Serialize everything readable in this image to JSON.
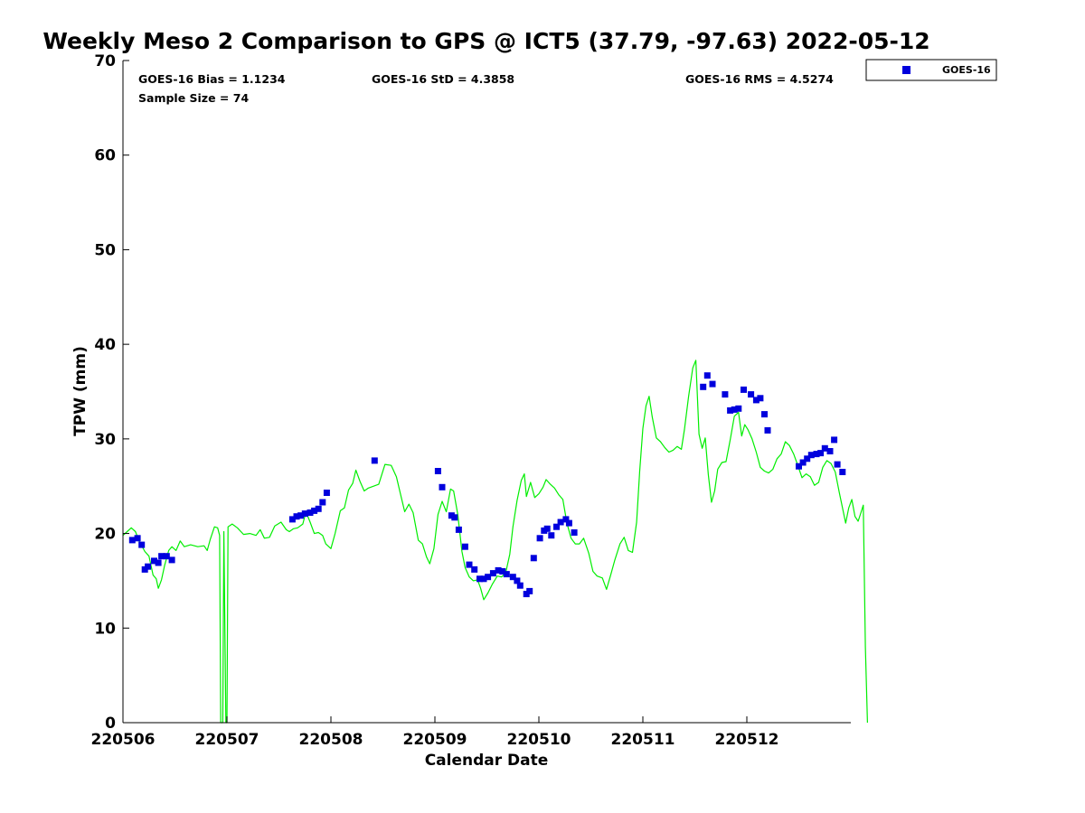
{
  "colors": {
    "gps_line": "#00ee00",
    "goes_marker": "#0000dd",
    "axis": "#000000",
    "background": "#ffffff"
  },
  "stats": {
    "bias": "GOES-16 Bias = 1.1234",
    "std": "GOES-16 StD = 4.3858",
    "rms": "GOES-16 RMS = 4.5274",
    "sample_size": "Sample Size = 74"
  },
  "chart_data": {
    "type": "scatter",
    "title": "Weekly Meso 2 Comparison to GPS @ ICT5 (37.79, -97.63) 2022-05-12",
    "xlabel": "Calendar Date",
    "ylabel": "TPW (mm)",
    "xlim": [
      0,
      7
    ],
    "ylim": [
      0,
      70
    ],
    "grid": false,
    "legend_position": "top-right outside",
    "x_ticks": [
      {
        "value": 0,
        "label": "220506"
      },
      {
        "value": 1,
        "label": "220507"
      },
      {
        "value": 2,
        "label": "220508"
      },
      {
        "value": 3,
        "label": "220509"
      },
      {
        "value": 4,
        "label": "220510"
      },
      {
        "value": 5,
        "label": "220511"
      },
      {
        "value": 6,
        "label": "220512"
      }
    ],
    "y_ticks": [
      {
        "value": 0,
        "label": "0"
      },
      {
        "value": 10,
        "label": "10"
      },
      {
        "value": 20,
        "label": "20"
      },
      {
        "value": 30,
        "label": "30"
      },
      {
        "value": 40,
        "label": "40"
      },
      {
        "value": 50,
        "label": "50"
      },
      {
        "value": 60,
        "label": "60"
      },
      {
        "value": 70,
        "label": "70"
      }
    ],
    "series": [
      {
        "name": "GOES-16",
        "type": "scatter",
        "marker": "square",
        "points": [
          [
            0.09,
            19.3
          ],
          [
            0.14,
            19.5
          ],
          [
            0.18,
            18.8
          ],
          [
            0.21,
            16.2
          ],
          [
            0.24,
            16.5
          ],
          [
            0.3,
            17.1
          ],
          [
            0.34,
            16.9
          ],
          [
            0.37,
            17.6
          ],
          [
            0.42,
            17.6
          ],
          [
            0.47,
            17.2
          ],
          [
            1.63,
            21.5
          ],
          [
            1.67,
            21.8
          ],
          [
            1.71,
            21.9
          ],
          [
            1.75,
            22.1
          ],
          [
            1.8,
            22.2
          ],
          [
            1.84,
            22.4
          ],
          [
            1.88,
            22.6
          ],
          [
            1.92,
            23.3
          ],
          [
            1.96,
            24.3
          ],
          [
            2.42,
            27.7
          ],
          [
            3.03,
            26.6
          ],
          [
            3.07,
            24.9
          ],
          [
            3.16,
            21.9
          ],
          [
            3.19,
            21.7
          ],
          [
            3.23,
            20.4
          ],
          [
            3.29,
            18.6
          ],
          [
            3.33,
            16.7
          ],
          [
            3.38,
            16.2
          ],
          [
            3.43,
            15.2
          ],
          [
            3.47,
            15.2
          ],
          [
            3.51,
            15.4
          ],
          [
            3.56,
            15.8
          ],
          [
            3.61,
            16.1
          ],
          [
            3.65,
            16.0
          ],
          [
            3.69,
            15.7
          ],
          [
            3.75,
            15.4
          ],
          [
            3.79,
            15.0
          ],
          [
            3.82,
            14.5
          ],
          [
            3.88,
            13.6
          ],
          [
            3.91,
            13.9
          ],
          [
            3.95,
            17.4
          ],
          [
            4.01,
            19.5
          ],
          [
            4.05,
            20.3
          ],
          [
            4.08,
            20.5
          ],
          [
            4.12,
            19.8
          ],
          [
            4.17,
            20.7
          ],
          [
            4.21,
            21.2
          ],
          [
            4.26,
            21.5
          ],
          [
            4.29,
            21.1
          ],
          [
            4.34,
            20.1
          ],
          [
            5.58,
            35.5
          ],
          [
            5.62,
            36.7
          ],
          [
            5.67,
            35.8
          ],
          [
            5.79,
            34.7
          ],
          [
            5.84,
            33.0
          ],
          [
            5.88,
            33.1
          ],
          [
            5.92,
            33.2
          ],
          [
            5.97,
            35.2
          ],
          [
            6.04,
            34.7
          ],
          [
            6.09,
            34.1
          ],
          [
            6.13,
            34.3
          ],
          [
            6.17,
            32.6
          ],
          [
            6.2,
            30.9
          ],
          [
            6.5,
            27.1
          ],
          [
            6.54,
            27.5
          ],
          [
            6.58,
            27.9
          ],
          [
            6.62,
            28.3
          ],
          [
            6.67,
            28.4
          ],
          [
            6.71,
            28.5
          ],
          [
            6.75,
            29.0
          ],
          [
            6.8,
            28.7
          ],
          [
            6.84,
            29.9
          ],
          [
            6.87,
            27.3
          ],
          [
            6.92,
            26.5
          ]
        ]
      },
      {
        "name": "GPS",
        "type": "line",
        "points": [
          [
            0.0,
            19.8
          ],
          [
            0.04,
            20.2
          ],
          [
            0.08,
            20.6
          ],
          [
            0.12,
            20.2
          ],
          [
            0.16,
            19.1
          ],
          [
            0.21,
            18.1
          ],
          [
            0.25,
            17.6
          ],
          [
            0.29,
            15.6
          ],
          [
            0.32,
            15.2
          ],
          [
            0.34,
            14.2
          ],
          [
            0.37,
            15.1
          ],
          [
            0.4,
            16.6
          ],
          [
            0.44,
            18.2
          ],
          [
            0.47,
            18.6
          ],
          [
            0.51,
            18.2
          ],
          [
            0.55,
            19.2
          ],
          [
            0.59,
            18.6
          ],
          [
            0.65,
            18.8
          ],
          [
            0.72,
            18.6
          ],
          [
            0.78,
            18.7
          ],
          [
            0.81,
            18.2
          ],
          [
            0.84,
            19.4
          ],
          [
            0.88,
            20.7
          ],
          [
            0.91,
            20.6
          ],
          [
            0.93,
            19.8
          ],
          [
            0.94,
            0
          ],
          [
            0.96,
            0
          ],
          [
            0.97,
            20.2
          ],
          [
            0.99,
            0
          ],
          [
            1.0,
            0
          ],
          [
            1.01,
            20.7
          ],
          [
            1.05,
            21.0
          ],
          [
            1.1,
            20.6
          ],
          [
            1.16,
            19.9
          ],
          [
            1.22,
            20.0
          ],
          [
            1.28,
            19.8
          ],
          [
            1.32,
            20.4
          ],
          [
            1.36,
            19.5
          ],
          [
            1.41,
            19.6
          ],
          [
            1.46,
            20.8
          ],
          [
            1.52,
            21.2
          ],
          [
            1.57,
            20.4
          ],
          [
            1.6,
            20.2
          ],
          [
            1.64,
            20.5
          ],
          [
            1.68,
            20.6
          ],
          [
            1.73,
            21.0
          ],
          [
            1.76,
            22.3
          ],
          [
            1.8,
            21.2
          ],
          [
            1.84,
            20.0
          ],
          [
            1.88,
            20.1
          ],
          [
            1.92,
            19.8
          ],
          [
            1.95,
            18.9
          ],
          [
            2.0,
            18.4
          ],
          [
            2.04,
            20.0
          ],
          [
            2.09,
            22.4
          ],
          [
            2.13,
            22.7
          ],
          [
            2.17,
            24.6
          ],
          [
            2.21,
            25.3
          ],
          [
            2.24,
            26.7
          ],
          [
            2.28,
            25.5
          ],
          [
            2.32,
            24.5
          ],
          [
            2.36,
            24.8
          ],
          [
            2.41,
            25.0
          ],
          [
            2.46,
            25.2
          ],
          [
            2.52,
            27.3
          ],
          [
            2.58,
            27.2
          ],
          [
            2.63,
            26.0
          ],
          [
            2.67,
            24.1
          ],
          [
            2.71,
            22.3
          ],
          [
            2.75,
            23.1
          ],
          [
            2.79,
            22.2
          ],
          [
            2.84,
            19.3
          ],
          [
            2.88,
            18.9
          ],
          [
            2.92,
            17.5
          ],
          [
            2.95,
            16.8
          ],
          [
            2.99,
            18.4
          ],
          [
            3.03,
            22.0
          ],
          [
            3.07,
            23.4
          ],
          [
            3.11,
            22.3
          ],
          [
            3.15,
            24.7
          ],
          [
            3.18,
            24.5
          ],
          [
            3.22,
            22.0
          ],
          [
            3.26,
            18.1
          ],
          [
            3.29,
            16.4
          ],
          [
            3.33,
            15.4
          ],
          [
            3.37,
            15.0
          ],
          [
            3.41,
            15.1
          ],
          [
            3.44,
            14.2
          ],
          [
            3.47,
            13.0
          ],
          [
            3.51,
            13.7
          ],
          [
            3.55,
            14.6
          ],
          [
            3.6,
            15.5
          ],
          [
            3.64,
            15.4
          ],
          [
            3.68,
            15.8
          ],
          [
            3.72,
            17.8
          ],
          [
            3.75,
            20.7
          ],
          [
            3.79,
            23.5
          ],
          [
            3.83,
            25.6
          ],
          [
            3.86,
            26.3
          ],
          [
            3.88,
            23.9
          ],
          [
            3.92,
            25.4
          ],
          [
            3.96,
            23.8
          ],
          [
            4.0,
            24.2
          ],
          [
            4.04,
            24.9
          ],
          [
            4.07,
            25.7
          ],
          [
            4.11,
            25.2
          ],
          [
            4.15,
            24.8
          ],
          [
            4.19,
            24.1
          ],
          [
            4.23,
            23.6
          ],
          [
            4.27,
            21.1
          ],
          [
            4.31,
            19.5
          ],
          [
            4.35,
            18.9
          ],
          [
            4.39,
            18.9
          ],
          [
            4.43,
            19.5
          ],
          [
            4.48,
            17.9
          ],
          [
            4.52,
            16.0
          ],
          [
            4.56,
            15.5
          ],
          [
            4.61,
            15.3
          ],
          [
            4.65,
            14.1
          ],
          [
            4.69,
            15.6
          ],
          [
            4.73,
            17.2
          ],
          [
            4.78,
            18.9
          ],
          [
            4.82,
            19.6
          ],
          [
            4.86,
            18.2
          ],
          [
            4.9,
            18.0
          ],
          [
            4.94,
            21.2
          ],
          [
            4.97,
            26.6
          ],
          [
            5.0,
            31.1
          ],
          [
            5.03,
            33.5
          ],
          [
            5.06,
            34.5
          ],
          [
            5.09,
            32.3
          ],
          [
            5.13,
            30.1
          ],
          [
            5.17,
            29.7
          ],
          [
            5.21,
            29.1
          ],
          [
            5.25,
            28.6
          ],
          [
            5.29,
            28.8
          ],
          [
            5.33,
            29.2
          ],
          [
            5.37,
            28.9
          ],
          [
            5.4,
            31.0
          ],
          [
            5.44,
            34.5
          ],
          [
            5.48,
            37.5
          ],
          [
            5.51,
            38.3
          ],
          [
            5.54,
            30.5
          ],
          [
            5.57,
            29.0
          ],
          [
            5.6,
            30.1
          ],
          [
            5.63,
            26.2
          ],
          [
            5.66,
            23.3
          ],
          [
            5.69,
            24.5
          ],
          [
            5.72,
            26.8
          ],
          [
            5.76,
            27.5
          ],
          [
            5.8,
            27.6
          ],
          [
            5.84,
            29.9
          ],
          [
            5.88,
            32.4
          ],
          [
            5.92,
            32.8
          ],
          [
            5.95,
            30.3
          ],
          [
            5.98,
            31.5
          ],
          [
            6.01,
            31.0
          ],
          [
            6.05,
            30.0
          ],
          [
            6.09,
            28.6
          ],
          [
            6.13,
            27.0
          ],
          [
            6.17,
            26.6
          ],
          [
            6.21,
            26.4
          ],
          [
            6.25,
            26.8
          ],
          [
            6.29,
            27.9
          ],
          [
            6.33,
            28.4
          ],
          [
            6.37,
            29.7
          ],
          [
            6.41,
            29.3
          ],
          [
            6.45,
            28.4
          ],
          [
            6.49,
            27.2
          ],
          [
            6.53,
            25.9
          ],
          [
            6.57,
            26.3
          ],
          [
            6.61,
            26.0
          ],
          [
            6.65,
            25.1
          ],
          [
            6.69,
            25.4
          ],
          [
            6.73,
            27.0
          ],
          [
            6.77,
            27.7
          ],
          [
            6.81,
            27.4
          ],
          [
            6.85,
            26.5
          ],
          [
            6.89,
            24.3
          ],
          [
            6.92,
            22.7
          ],
          [
            6.95,
            21.1
          ],
          [
            6.98,
            22.7
          ],
          [
            7.01,
            23.6
          ],
          [
            7.04,
            21.8
          ],
          [
            7.07,
            21.3
          ],
          [
            7.1,
            22.3
          ],
          [
            7.12,
            23.0
          ],
          [
            7.14,
            8.0
          ],
          [
            7.16,
            0
          ]
        ]
      }
    ]
  }
}
